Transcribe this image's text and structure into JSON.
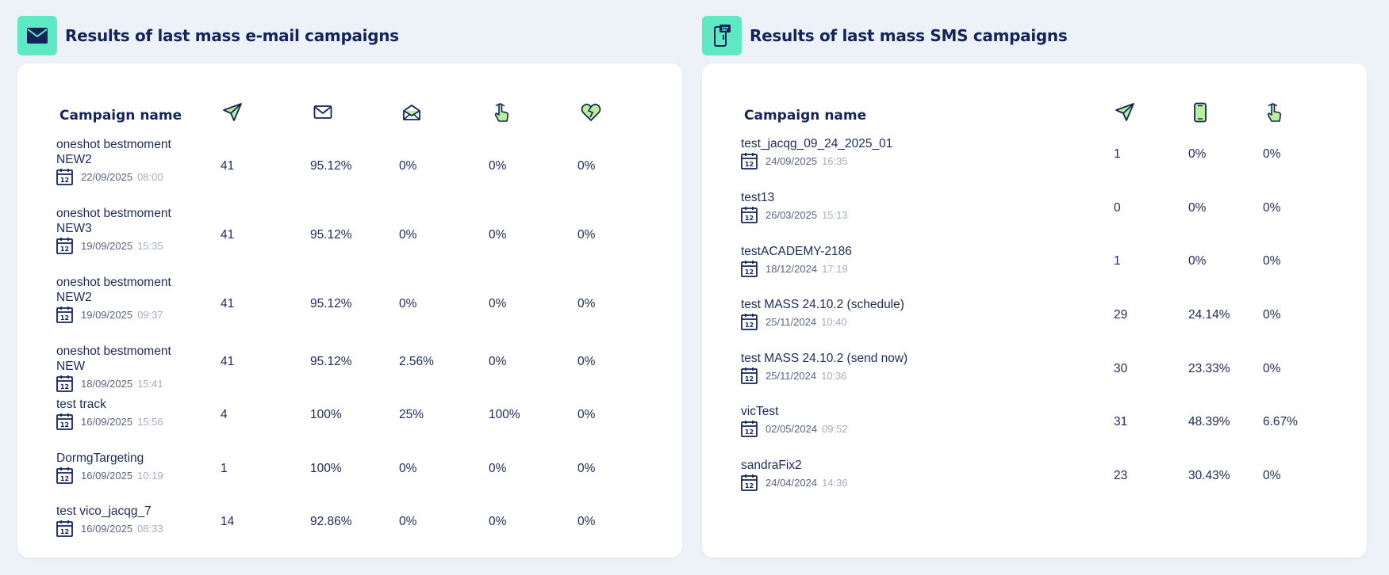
{
  "email_panel": {
    "title": "Results of last mass e-mail campaigns",
    "header_icon": "envelope-icon",
    "column_header": "Campaign name",
    "column_icons": [
      "paper-plane-icon",
      "envelope-icon",
      "envelope-open-icon",
      "hand-pointer-icon",
      "broken-heart-icon"
    ],
    "rows": [
      {
        "name": " oneshot bestmoment NEW2",
        "date": "22/09/2025",
        "time": "08:00",
        "values": [
          "41",
          "95.12%",
          "0%",
          "0%",
          "0%"
        ]
      },
      {
        "name": " oneshot bestmoment NEW3",
        "date": "19/09/2025",
        "time": "15:35",
        "values": [
          "41",
          "95.12%",
          "0%",
          "0%",
          "0%"
        ]
      },
      {
        "name": "oneshot bestmoment NEW2",
        "date": "19/09/2025",
        "time": "09:37",
        "values": [
          "41",
          "95.12%",
          "0%",
          "0%",
          "0%"
        ]
      },
      {
        "name": "oneshot bestmoment NEW",
        "date": "18/09/2025",
        "time": "15:41",
        "values": [
          "41",
          "95.12%",
          "2.56%",
          "0%",
          "0%"
        ]
      },
      {
        "name": "test track",
        "date": "16/09/2025",
        "time": "15:56",
        "values": [
          "4",
          "100%",
          "25%",
          "100%",
          "0%"
        ]
      },
      {
        "name": "DormgTargeting",
        "date": "16/09/2025",
        "time": "10:19",
        "values": [
          "1",
          "100%",
          "0%",
          "0%",
          "0%"
        ]
      },
      {
        "name": "test vico_jacqg_7",
        "date": "16/09/2025",
        "time": "08:33",
        "values": [
          "14",
          "92.86%",
          "0%",
          "0%",
          "0%"
        ]
      }
    ]
  },
  "sms_panel": {
    "title": "Results of last mass SMS campaigns",
    "header_icon": "phone-message-icon",
    "column_header": "Campaign name",
    "column_icons": [
      "paper-plane-icon",
      "mobile-phone-icon",
      "hand-pointer-icon"
    ],
    "rows": [
      {
        "name": "test_jacqg_09_24_2025_01",
        "date": "24/09/2025",
        "time": "16:35",
        "values": [
          "1",
          "0%",
          "0%"
        ]
      },
      {
        "name": "test13",
        "date": "26/03/2025",
        "time": "15:13",
        "values": [
          "0",
          "0%",
          "0%"
        ]
      },
      {
        "name": "testACADEMY-2186",
        "date": "18/12/2024",
        "time": "17:19",
        "values": [
          "1",
          "0%",
          "0%"
        ]
      },
      {
        "name": "test MASS 24.10.2 (schedule)",
        "date": "25/11/2024",
        "time": "10:40",
        "values": [
          "29",
          "24.14%",
          "0%"
        ]
      },
      {
        "name": "test MASS 24.10.2 (send now)",
        "date": "25/11/2024",
        "time": "10:36",
        "values": [
          "30",
          "23.33%",
          "0%"
        ]
      },
      {
        "name": "vicTest",
        "date": "02/05/2024",
        "time": "09:52",
        "values": [
          "31",
          "48.39%",
          "6.67%"
        ]
      },
      {
        "name": "sandraFix2",
        "date": "24/04/2024",
        "time": "14:36",
        "values": [
          "23",
          "30.43%",
          "0%"
        ]
      }
    ]
  },
  "colors": {
    "accent": "#5ee8c4",
    "navy": "#14245a",
    "background": "#edf1f8",
    "icon_fill": "#b9ee9a"
  }
}
